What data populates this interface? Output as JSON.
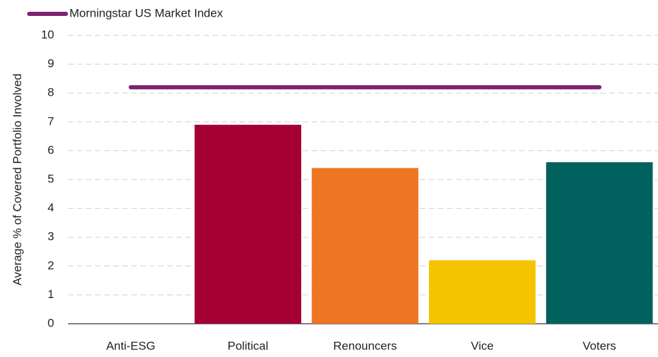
{
  "chart_data": {
    "type": "bar",
    "y_label": "Average % of Covered Portfolio Involved",
    "categories": [
      "Anti-ESG",
      "Political",
      "Renouncers",
      "Vice",
      "Voters"
    ],
    "values": [
      0,
      6.9,
      5.4,
      2.2,
      5.6
    ],
    "colors": [
      "#a50034",
      "#a50034",
      "#ee7623",
      "#f5c400",
      "#00615f"
    ],
    "line": {
      "name": "Morningstar US Market Index",
      "color": "#7b2470",
      "values": [
        8.2,
        8.2,
        8.2,
        8.2,
        8.2
      ]
    },
    "ylim": [
      0,
      10
    ],
    "yticks": [
      0,
      1,
      2,
      3,
      4,
      5,
      6,
      7,
      8,
      9,
      10
    ],
    "grid": true
  }
}
